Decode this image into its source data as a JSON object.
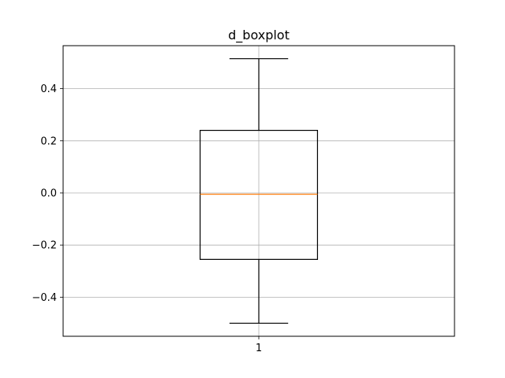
{
  "chart_data": {
    "type": "boxplot",
    "title": "d_boxplot",
    "xlabel": "",
    "ylabel": "",
    "categories": [
      "1"
    ],
    "boxes": [
      {
        "category": "1",
        "whisker_low": -0.5,
        "q1": -0.255,
        "median": -0.005,
        "q3": 0.24,
        "whisker_high": 0.515
      }
    ],
    "ylim": [
      -0.55,
      0.565
    ],
    "y_ticks": [
      -0.4,
      -0.2,
      0.0,
      0.2,
      0.4
    ],
    "y_tick_labels": [
      "−0.4",
      "−0.2",
      "0.0",
      "0.2",
      "0.4"
    ],
    "grid": true,
    "colors": {
      "box": "#000000",
      "median": "#ff7f0e",
      "grid": "#b0b0b0",
      "axes": "#000000"
    }
  }
}
